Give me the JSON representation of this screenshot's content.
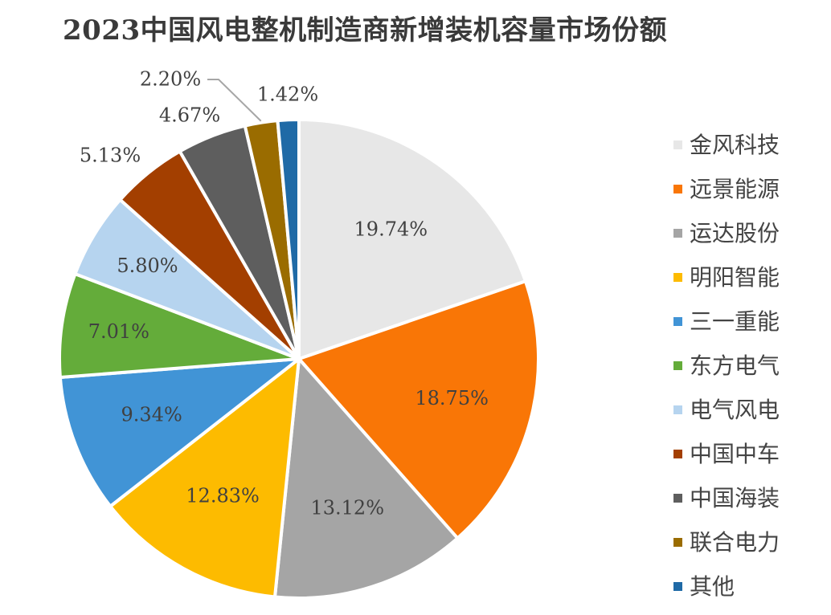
{
  "chart_data": {
    "type": "pie",
    "title": "2023中国风电整机制造商新增装机容量市场份额",
    "categories": [
      "金风科技",
      "远景能源",
      "运达股份",
      "明阳智能",
      "三一重能",
      "东方电气",
      "电气风电",
      "中国中车",
      "中国海装",
      "联合电力",
      "其他"
    ],
    "values": [
      19.74,
      18.75,
      13.12,
      12.83,
      9.34,
      7.01,
      5.8,
      5.13,
      4.67,
      2.2,
      1.42
    ],
    "data_labels": [
      "19.74%",
      "18.75%",
      "13.12%",
      "12.83%",
      "9.34%",
      "7.01%",
      "5.80%",
      "5.13%",
      "4.67%",
      "2.20%",
      "1.42%"
    ],
    "colors": [
      "#e7e7e7",
      "#f97606",
      "#a5a5a5",
      "#fdbb00",
      "#4194d6",
      "#64ac3a",
      "#b6d4ef",
      "#a33f00",
      "#5e5e5e",
      "#9a6c00",
      "#1f6aa6"
    ],
    "legend_position": "right"
  }
}
